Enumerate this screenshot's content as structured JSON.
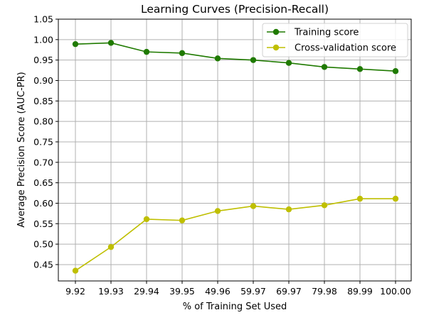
{
  "chart_data": {
    "type": "line",
    "title": "Learning Curves (Precision-Recall)",
    "xlabel": "% of Training Set Used",
    "ylabel": "Average Precision Score (AUC-PR)",
    "categories": [
      "9.92",
      "19.93",
      "29.94",
      "39.95",
      "49.96",
      "59.97",
      "69.97",
      "79.98",
      "89.99",
      "100.00"
    ],
    "ylim": [
      0.41,
      1.05
    ],
    "yticks": [
      "0.45",
      "0.50",
      "0.55",
      "0.60",
      "0.65",
      "0.70",
      "0.75",
      "0.80",
      "0.85",
      "0.90",
      "0.95",
      "1.00",
      "1.05"
    ],
    "grid": true,
    "legend_position": "top-right",
    "series": [
      {
        "name": "Training score",
        "color": "#1f7a00",
        "marker": "circle",
        "values": [
          0.989,
          0.992,
          0.97,
          0.967,
          0.954,
          0.95,
          0.943,
          0.933,
          0.928,
          0.923
        ]
      },
      {
        "name": "Cross-validation score",
        "color": "#bfbf00",
        "marker": "circle",
        "values": [
          0.435,
          0.493,
          0.561,
          0.558,
          0.581,
          0.593,
          0.585,
          0.595,
          0.611,
          0.611
        ]
      }
    ]
  }
}
